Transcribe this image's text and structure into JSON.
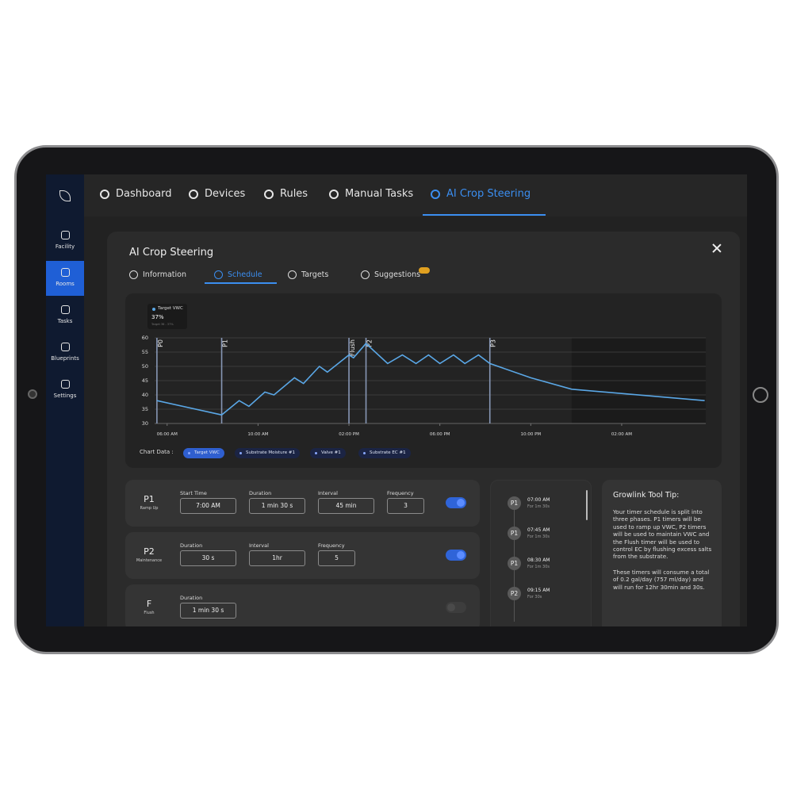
{
  "nav": {
    "items": [
      "Dashboard",
      "Devices",
      "Rules",
      "Manual Tasks",
      "AI Crop Steering"
    ],
    "active": 4
  },
  "sidebar": {
    "items": [
      "Facility",
      "Rooms",
      "Tasks",
      "Blueprints",
      "Settings"
    ],
    "active": 1
  },
  "panel": {
    "title": "AI Crop Steering",
    "tabs": [
      "Information",
      "Schedule",
      "Targets",
      "Suggestions"
    ],
    "active_tab": 1
  },
  "chart_data": {
    "type": "line",
    "x": [
      5.55,
      8.4,
      9.17,
      9.6,
      10.3,
      10.7,
      11.6,
      12.0,
      12.7,
      13.05,
      14.0,
      14.2,
      14.75,
      15.7,
      16.35,
      16.95,
      17.5,
      18.0,
      18.6,
      19.1,
      19.7,
      20.2,
      22.0,
      23.8,
      29.65
    ],
    "series": [
      {
        "name": "Target VWC",
        "color": "#5aa7e6",
        "values": [
          38,
          33,
          38,
          36,
          41,
          40,
          46,
          44,
          50,
          48,
          54,
          53,
          58,
          51,
          54,
          51,
          54,
          51,
          54,
          51,
          54,
          51,
          46,
          42,
          38
        ]
      }
    ],
    "xlim": [
      5.45,
      29.7
    ],
    "xticks": [
      {
        "value": 6,
        "label": "06:00 AM"
      },
      {
        "value": 10,
        "label": "10:00 AM"
      },
      {
        "value": 14,
        "label": "02:00 PM"
      },
      {
        "value": 18,
        "label": "06:00 PM"
      },
      {
        "value": 22,
        "label": "10:00 PM"
      },
      {
        "value": 26,
        "label": "02:00 AM"
      }
    ],
    "ylim": [
      30,
      60
    ],
    "yticks": [
      30,
      35,
      40,
      45,
      50,
      55,
      60
    ],
    "grid": true,
    "phase_markers": [
      {
        "label": "P0",
        "x": 5.55
      },
      {
        "label": "P1",
        "x": 8.4
      },
      {
        "label": "Flush",
        "x": 14.0
      },
      {
        "label": "P2",
        "x": 14.75
      },
      {
        "label": "P3",
        "x": 20.2
      }
    ],
    "shade_from": 23.8,
    "tooltip": {
      "value": "37%",
      "detail": "Target 36 - 37%"
    },
    "chips_label": "Chart Data :",
    "chips": [
      {
        "name": "Target VWC",
        "active": true
      },
      {
        "name": "Substrate Moisture #1",
        "active": false
      },
      {
        "name": "Valve #1",
        "active": false
      },
      {
        "name": "Substrate EC #1",
        "active": false
      }
    ]
  },
  "timers": [
    {
      "name": "P1",
      "subtitle": "Ramp Up",
      "enabled": true,
      "fields": [
        {
          "label": "Start Time",
          "value": "7:00 AM"
        },
        {
          "label": "Duration",
          "value": "1 min 30 s"
        },
        {
          "label": "Interval",
          "value": "45 min"
        },
        {
          "label": "Frequency",
          "value": "3"
        }
      ]
    },
    {
      "name": "P2",
      "subtitle": "Maintenance",
      "enabled": true,
      "fields": [
        {
          "label": "Duration",
          "value": "30 s"
        },
        {
          "label": "Interval",
          "value": "1hr"
        },
        {
          "label": "Frequency",
          "value": "5"
        }
      ]
    },
    {
      "name": "F",
      "subtitle": "Flush",
      "enabled": false,
      "fields": [
        {
          "label": "Duration",
          "value": "1 min 30 s"
        }
      ]
    }
  ],
  "schedule": [
    {
      "phase": "P1",
      "time": "07:00 AM",
      "duration": "For 1m 30s"
    },
    {
      "phase": "P1",
      "time": "07:45 AM",
      "duration": "For 1m 30s"
    },
    {
      "phase": "P1",
      "time": "08:30 AM",
      "duration": "For 1m 30s"
    },
    {
      "phase": "P2",
      "time": "09:15 AM",
      "duration": "For 30s"
    }
  ],
  "tip": {
    "title": "Growlink Tool Tip:",
    "paragraphs": [
      "Your timer schedule is split into three phases. P1 timers will be used to ramp up VWC, P2 timers will be used to maintain VWC and the Flush timer will be used to control EC by flushing excess salts from the substrate.",
      "These timers will consume a total of 0.2 gal/day (757 ml/day)  and will run for 12hr 30min and 30s."
    ]
  }
}
